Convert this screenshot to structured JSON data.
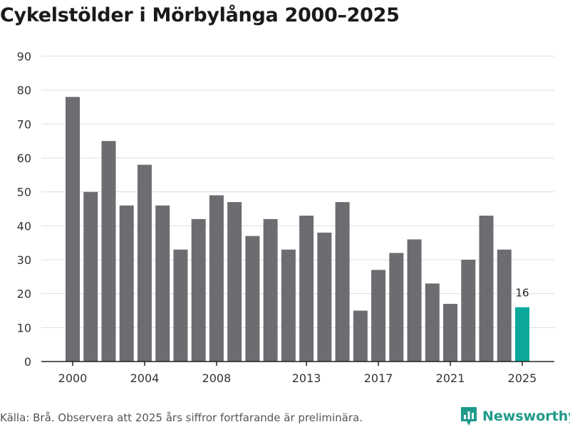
{
  "title": "Cykelstölder i Mörbylånga 2000–2025",
  "source": "Källa: Brå. Observera att 2025 års siffror fortfarande är preliminära.",
  "brand": {
    "name": "Newsworthy",
    "icon": "bar-chart-logo-icon",
    "color": "#1e9a8a"
  },
  "colors": {
    "bar": "#6d6c71",
    "highlight": "#0ba89b",
    "grid": "#dddddd",
    "axis": "#222222"
  },
  "chart_data": {
    "type": "bar",
    "title": "Cykelstölder i Mörbylånga 2000–2025",
    "xlabel": "",
    "ylabel": "",
    "ylim": [
      0,
      90
    ],
    "yticks": [
      0,
      10,
      20,
      30,
      40,
      50,
      60,
      70,
      80,
      90
    ],
    "xticks": [
      "2000",
      "2004",
      "2008",
      "2013",
      "2017",
      "2021",
      "2025"
    ],
    "categories": [
      "2000",
      "2001",
      "2002",
      "2003",
      "2004",
      "2005",
      "2006",
      "2007",
      "2008",
      "2009",
      "2010",
      "2011",
      "2012",
      "2013",
      "2014",
      "2015",
      "2016",
      "2017",
      "2018",
      "2019",
      "2020",
      "2021",
      "2022",
      "2023",
      "2024",
      "2025"
    ],
    "values": [
      78,
      50,
      65,
      46,
      58,
      46,
      33,
      42,
      49,
      47,
      37,
      42,
      33,
      43,
      38,
      47,
      15,
      27,
      32,
      36,
      23,
      17,
      30,
      43,
      33,
      16
    ],
    "highlight_index": 25,
    "data_labels": [
      {
        "category": "2025",
        "text": "16"
      }
    ],
    "grid": true
  }
}
